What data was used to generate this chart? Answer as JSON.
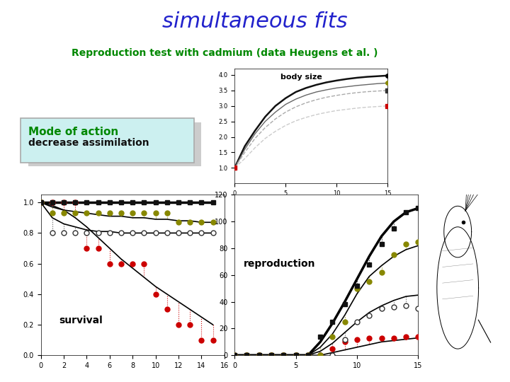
{
  "title": "simultaneous fits",
  "subtitle": "Reproduction test with cadmium (data Heugens et al. )",
  "title_color": "#2222cc",
  "subtitle_color": "#008800",
  "bg_color": "#ffffff",
  "teal_bar_color": "#009999",
  "mode_box_text1": "Mode of action",
  "mode_box_text2": "decrease assimilation",
  "mode_box_bg": "#ccf0f0",
  "mode_box_border": "#aaaaaa",
  "surv_x": [
    0,
    1,
    2,
    3,
    4,
    5,
    6,
    7,
    8,
    9,
    10,
    11,
    12,
    13,
    14,
    15
  ],
  "surv_conc0_data": [
    1.0,
    1.0,
    1.0,
    1.0,
    1.0,
    1.0,
    1.0,
    1.0,
    1.0,
    1.0,
    1.0,
    1.0,
    1.0,
    1.0,
    1.0,
    1.0
  ],
  "surv_conc0_line": [
    1.0,
    1.0,
    1.0,
    1.0,
    1.0,
    1.0,
    1.0,
    1.0,
    1.0,
    1.0,
    1.0,
    1.0,
    1.0,
    1.0,
    1.0,
    1.0
  ],
  "surv_conc1_data": [
    1.0,
    0.93,
    0.93,
    0.93,
    0.93,
    0.93,
    0.93,
    0.93,
    0.93,
    0.93,
    0.93,
    0.93,
    0.87,
    0.87,
    0.87,
    0.87
  ],
  "surv_conc1_line": [
    1.0,
    0.97,
    0.95,
    0.94,
    0.93,
    0.92,
    0.91,
    0.91,
    0.9,
    0.9,
    0.89,
    0.89,
    0.88,
    0.88,
    0.87,
    0.87
  ],
  "surv_conc2_data": [
    1.0,
    0.8,
    0.8,
    0.8,
    0.8,
    0.8,
    0.8,
    0.8,
    0.8,
    0.8,
    0.8,
    0.8,
    0.8,
    0.8,
    0.8,
    0.8
  ],
  "surv_conc2_line": [
    1.0,
    0.9,
    0.86,
    0.84,
    0.82,
    0.81,
    0.81,
    0.8,
    0.8,
    0.8,
    0.8,
    0.8,
    0.8,
    0.8,
    0.8,
    0.8
  ],
  "surv_conc3_data": [
    1.0,
    1.0,
    1.0,
    1.0,
    0.7,
    0.7,
    0.6,
    0.6,
    0.6,
    0.6,
    0.4,
    0.3,
    0.2,
    0.2,
    0.1,
    0.1
  ],
  "surv_conc3_line": [
    1.0,
    0.98,
    0.95,
    0.9,
    0.84,
    0.77,
    0.7,
    0.63,
    0.57,
    0.51,
    0.45,
    0.4,
    0.35,
    0.3,
    0.25,
    0.2
  ],
  "surv_conc0_color": "#111111",
  "surv_conc1_color": "#888800",
  "surv_conc2_color": "#555555",
  "surv_conc3_color": "#cc0000",
  "bodysize_line_x": [
    0,
    1,
    2,
    3,
    4,
    5,
    6,
    7,
    8,
    9,
    10,
    11,
    12,
    13,
    14,
    15
  ],
  "bodysize_conc0_line": [
    1.0,
    1.7,
    2.2,
    2.65,
    3.0,
    3.25,
    3.45,
    3.58,
    3.68,
    3.76,
    3.82,
    3.87,
    3.91,
    3.94,
    3.96,
    3.98
  ],
  "bodysize_conc1_line": [
    1.0,
    1.6,
    2.1,
    2.5,
    2.8,
    3.05,
    3.22,
    3.35,
    3.45,
    3.52,
    3.58,
    3.62,
    3.66,
    3.69,
    3.72,
    3.74
  ],
  "bodysize_conc2_line": [
    1.0,
    1.5,
    1.95,
    2.3,
    2.58,
    2.8,
    2.97,
    3.1,
    3.2,
    3.28,
    3.34,
    3.39,
    3.43,
    3.46,
    3.48,
    3.5
  ],
  "bodysize_conc3_line": [
    1.0,
    1.3,
    1.65,
    1.95,
    2.18,
    2.37,
    2.52,
    2.63,
    2.72,
    2.79,
    2.85,
    2.89,
    2.93,
    2.96,
    2.98,
    3.0
  ],
  "bodysize_pt_x": [
    15
  ],
  "bodysize_conc0_pt": [
    3.98
  ],
  "bodysize_conc1_pt": [
    3.74
  ],
  "bodysize_conc2_pt": [
    3.5
  ],
  "bodysize_conc3_pt": [
    3.0
  ],
  "bodysize_start_pt": [
    1.0
  ],
  "bodysize_ylim": [
    0.5,
    4.2
  ],
  "bodysize_yticks": [
    1,
    1.5,
    2,
    2.5,
    3,
    3.5,
    4
  ],
  "bodysize_xticks": [
    0,
    5,
    10,
    15
  ],
  "repro_x": [
    0,
    1,
    2,
    3,
    4,
    5,
    6,
    7,
    8,
    9,
    10,
    11,
    12,
    13,
    14,
    15
  ],
  "repro_conc0_data": [
    0,
    0,
    0,
    0,
    0,
    0,
    0,
    14,
    25,
    38,
    52,
    68,
    83,
    95,
    107,
    110
  ],
  "repro_conc1_data": [
    0,
    0,
    0,
    0,
    0,
    0,
    0,
    0,
    14,
    25,
    50,
    55,
    62,
    75,
    83,
    85
  ],
  "repro_conc2_data": [
    0,
    0,
    0,
    0,
    0,
    0,
    0,
    0,
    0,
    12,
    25,
    30,
    35,
    36,
    37,
    35
  ],
  "repro_conc3_data": [
    0,
    0,
    0,
    0,
    0,
    0,
    0,
    0,
    5,
    10,
    12,
    13,
    13,
    13,
    14,
    14
  ],
  "repro_conc0_line": [
    0,
    0,
    0,
    0,
    0,
    0,
    0,
    10,
    24,
    40,
    57,
    74,
    89,
    100,
    107,
    110
  ],
  "repro_conc1_line": [
    0,
    0,
    0,
    0,
    0,
    0,
    0,
    6,
    16,
    30,
    46,
    59,
    67,
    74,
    79,
    82
  ],
  "repro_conc2_line": [
    0,
    0,
    0,
    0,
    0,
    0,
    0,
    3,
    9,
    17,
    25,
    32,
    37,
    41,
    44,
    45
  ],
  "repro_conc3_line": [
    0,
    0,
    0,
    0,
    0,
    0,
    0,
    0,
    2,
    4,
    6,
    8,
    10,
    11,
    12,
    13
  ],
  "repro_ylim": [
    0,
    120
  ],
  "repro_yticks": [
    0,
    20,
    40,
    60,
    80,
    100,
    120
  ],
  "repro_xticks": [
    0,
    5,
    10,
    15
  ],
  "survival_yticks": [
    0,
    0.2,
    0.4,
    0.6,
    0.8,
    1
  ],
  "survival_xticks": [
    0,
    2,
    4,
    6,
    8,
    10,
    12,
    14,
    16
  ]
}
